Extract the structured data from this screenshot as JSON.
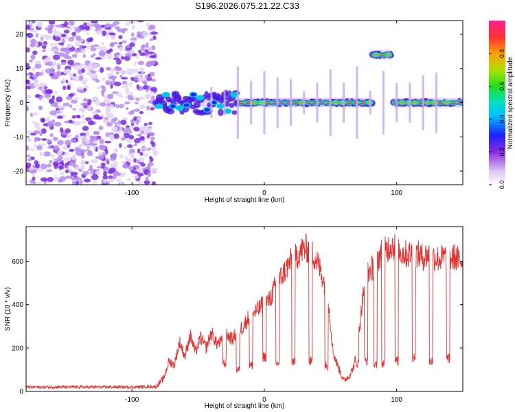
{
  "title": "S196.2026.075.21.22.C33",
  "chart_data": [
    {
      "type": "heatmap",
      "name": "spectrogram",
      "xlabel": "Height of straight line (km)",
      "ylabel": "Frequency (Hz)",
      "xlim": [
        -180,
        150
      ],
      "ylim": [
        -24,
        24
      ],
      "xticks": [
        -100,
        0,
        100
      ],
      "yticks": [
        -20,
        -10,
        0,
        10,
        20
      ],
      "colorbar": {
        "label": "Normalized spectral amplitude",
        "range": [
          0,
          1
        ],
        "ticks": [
          0.0,
          0.2,
          0.4,
          0.6,
          0.8
        ],
        "tick_labels": [
          "0.0",
          "0.2",
          "0.4",
          "0.6",
          "0.8"
        ]
      },
      "features": [
        {
          "name": "diffuse noise region",
          "x": [
            -180,
            -82
          ],
          "amplitude": 0.15
        },
        {
          "name": "fragmented signal near 0 Hz",
          "x": [
            -82,
            -20
          ],
          "y": 0,
          "amplitude": 0.35
        },
        {
          "name": "periodic signal line at 0 Hz",
          "x": [
            -20,
            82
          ],
          "y": 0,
          "amplitude": 0.9
        },
        {
          "name": "shifted signal segment at +14 Hz",
          "x": [
            82,
            96
          ],
          "y": 14,
          "amplitude": 0.85
        },
        {
          "name": "periodic signal line at 0 Hz",
          "x": [
            97,
            150
          ],
          "y": 0,
          "amplitude": 0.95
        }
      ]
    },
    {
      "type": "line",
      "name": "snr",
      "xlabel": "Height of straight line (km)",
      "ylabel": "SNR (10 * v/v)",
      "xlim": [
        -180,
        150
      ],
      "ylim": [
        0,
        760
      ],
      "xticks": [
        -100,
        0,
        100
      ],
      "yticks": [
        0,
        200,
        400,
        600
      ],
      "color": "#e53030",
      "series": [
        {
          "name": "SNR",
          "x": [
            -180,
            -100,
            -82,
            -76,
            -72,
            -68,
            -64,
            -60,
            -56,
            -52,
            -48,
            -44,
            -40,
            -36,
            -32,
            -28,
            -24,
            -20,
            -16,
            -12,
            -8,
            -4,
            0,
            4,
            8,
            12,
            16,
            20,
            24,
            28,
            32,
            36,
            40,
            44,
            48,
            52,
            56,
            60,
            64,
            68,
            72,
            76,
            80,
            84,
            88,
            92,
            96,
            100,
            104,
            108,
            112,
            116,
            120,
            124,
            128,
            132,
            136,
            140,
            144,
            148,
            150
          ],
          "y": [
            20,
            20,
            22,
            60,
            140,
            120,
            230,
            160,
            260,
            180,
            250,
            200,
            270,
            220,
            230,
            260,
            240,
            280,
            300,
            340,
            360,
            380,
            410,
            420,
            480,
            520,
            560,
            600,
            620,
            650,
            660,
            640,
            600,
            530,
            440,
            180,
            110,
            50,
            70,
            120,
            300,
            520,
            560,
            580,
            640,
            650,
            680,
            660,
            640,
            630,
            640,
            630,
            620,
            630,
            620,
            610,
            620,
            610,
            620,
            600,
            610
          ]
        }
      ],
      "dropouts": [
        {
          "x": -30,
          "y": 130
        },
        {
          "x": -20,
          "y": 100
        },
        {
          "x": -10,
          "y": 120
        },
        {
          "x": 0,
          "y": 160
        },
        {
          "x": 10,
          "y": 130
        },
        {
          "x": 22,
          "y": 140
        },
        {
          "x": 35,
          "y": 140
        },
        {
          "x": 47,
          "y": 120
        },
        {
          "x": 70,
          "y": 130
        },
        {
          "x": 77,
          "y": 140
        },
        {
          "x": 84,
          "y": 120
        },
        {
          "x": 90,
          "y": 130
        },
        {
          "x": 100,
          "y": 140
        },
        {
          "x": 113,
          "y": 160
        },
        {
          "x": 126,
          "y": 140
        },
        {
          "x": 139,
          "y": 150
        }
      ]
    }
  ]
}
